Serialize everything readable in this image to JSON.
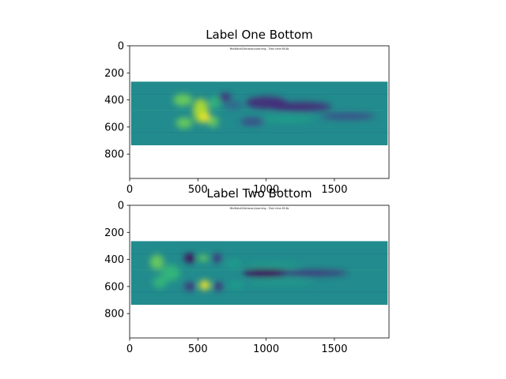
{
  "chart_data": [
    {
      "type": "heatmap",
      "title": "Label One Bottom",
      "inner_text": "MiniBatchDictionaryLearning - Train time 69.8s",
      "xlim": [
        0,
        1900
      ],
      "ylim": [
        980,
        0
      ],
      "x_ticks": [
        0,
        500,
        1000,
        1500
      ],
      "y_ticks": [
        0,
        200,
        400,
        600,
        800
      ],
      "image_extent": {
        "x": [
          10,
          1890
        ],
        "y": [
          265,
          735
        ]
      },
      "background_color": "#228b8d",
      "colormap": "viridis",
      "features": [
        {
          "x": 390,
          "y": 400,
          "rx": 70,
          "ry": 45,
          "level": 0.82
        },
        {
          "x": 400,
          "y": 570,
          "rx": 60,
          "ry": 40,
          "level": 0.8
        },
        {
          "x": 520,
          "y": 480,
          "rx": 55,
          "ry": 90,
          "level": 0.88
        },
        {
          "x": 555,
          "y": 530,
          "rx": 35,
          "ry": 35,
          "level": 0.98
        },
        {
          "x": 620,
          "y": 420,
          "rx": 40,
          "ry": 45,
          "level": 0.72
        },
        {
          "x": 610,
          "y": 560,
          "rx": 40,
          "ry": 40,
          "level": 0.75
        },
        {
          "x": 760,
          "y": 440,
          "rx": 70,
          "ry": 35,
          "level": 0.35
        },
        {
          "x": 1000,
          "y": 420,
          "rx": 150,
          "ry": 45,
          "level": 0.08
        },
        {
          "x": 1250,
          "y": 450,
          "rx": 230,
          "ry": 35,
          "level": 0.12
        },
        {
          "x": 1600,
          "y": 520,
          "rx": 200,
          "ry": 25,
          "level": 0.18
        },
        {
          "x": 1150,
          "y": 540,
          "rx": 200,
          "ry": 25,
          "level": 0.55
        },
        {
          "x": 700,
          "y": 380,
          "rx": 45,
          "ry": 30,
          "level": 0.15
        },
        {
          "x": 900,
          "y": 560,
          "rx": 90,
          "ry": 30,
          "level": 0.2
        }
      ]
    },
    {
      "type": "heatmap",
      "title": "Label Two Bottom",
      "inner_text": "MiniBatchDictionaryLearning - Train time 65.8s",
      "xlim": [
        0,
        1900
      ],
      "ylim": [
        980,
        0
      ],
      "x_ticks": [
        0,
        500,
        1000,
        1500
      ],
      "y_ticks": [
        0,
        200,
        400,
        600,
        800
      ],
      "image_extent": {
        "x": [
          10,
          1890
        ],
        "y": [
          265,
          735
        ]
      },
      "background_color": "#228b8d",
      "colormap": "viridis",
      "features": [
        {
          "x": 200,
          "y": 420,
          "rx": 50,
          "ry": 55,
          "level": 0.75
        },
        {
          "x": 220,
          "y": 570,
          "rx": 50,
          "ry": 45,
          "level": 0.72
        },
        {
          "x": 300,
          "y": 500,
          "rx": 70,
          "ry": 60,
          "level": 0.68
        },
        {
          "x": 440,
          "y": 390,
          "rx": 40,
          "ry": 35,
          "level": 0.05
        },
        {
          "x": 440,
          "y": 600,
          "rx": 40,
          "ry": 30,
          "level": 0.08
        },
        {
          "x": 540,
          "y": 390,
          "rx": 35,
          "ry": 25,
          "level": 0.82
        },
        {
          "x": 550,
          "y": 590,
          "rx": 40,
          "ry": 35,
          "level": 0.98
        },
        {
          "x": 640,
          "y": 390,
          "rx": 35,
          "ry": 30,
          "level": 0.1
        },
        {
          "x": 650,
          "y": 600,
          "rx": 35,
          "ry": 30,
          "level": 0.1
        },
        {
          "x": 760,
          "y": 430,
          "rx": 60,
          "ry": 30,
          "level": 0.55
        },
        {
          "x": 780,
          "y": 590,
          "rx": 55,
          "ry": 30,
          "level": 0.6
        },
        {
          "x": 1000,
          "y": 500,
          "rx": 170,
          "ry": 30,
          "level": 0.05
        },
        {
          "x": 1350,
          "y": 500,
          "rx": 250,
          "ry": 20,
          "level": 0.15
        },
        {
          "x": 1100,
          "y": 570,
          "rx": 230,
          "ry": 18,
          "level": 0.6
        },
        {
          "x": 1050,
          "y": 440,
          "rx": 200,
          "ry": 18,
          "level": 0.6
        }
      ]
    }
  ]
}
